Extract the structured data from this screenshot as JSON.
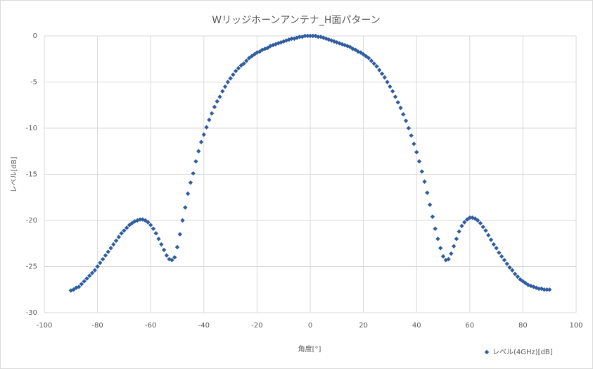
{
  "chart_data": {
    "type": "scatter",
    "title": "Wリッジホーンアンテナ_H面パターン",
    "x_label": "角度[°]",
    "y_label": "レベル[dB]",
    "xlim": [
      -100,
      100
    ],
    "xticks": [
      -100,
      -80,
      -60,
      -40,
      -20,
      0,
      20,
      40,
      60,
      80,
      100
    ],
    "ylim": [
      -30,
      0
    ],
    "yticks": [
      0,
      -5,
      -10,
      -15,
      -20,
      -25,
      -30
    ],
    "grid": true,
    "legend": "bottom-right",
    "series": [
      {
        "name": "レベル(4GHz)[dB]",
        "color": "#2e5c9e",
        "x": [
          -90,
          -89,
          -88,
          -87,
          -86,
          -85,
          -84,
          -83,
          -82,
          -81,
          -80,
          -79,
          -78,
          -77,
          -76,
          -75,
          -74,
          -73,
          -72,
          -71,
          -70,
          -69,
          -68,
          -67,
          -66,
          -65,
          -64,
          -63,
          -62,
          -61,
          -60,
          -59,
          -58,
          -57,
          -56,
          -55,
          -54,
          -53,
          -52,
          -51,
          -50,
          -49,
          -48,
          -47,
          -46,
          -45,
          -44,
          -43,
          -42,
          -41,
          -40,
          -39,
          -38,
          -37,
          -36,
          -35,
          -34,
          -33,
          -32,
          -31,
          -30,
          -29,
          -28,
          -27,
          -26,
          -25,
          -24,
          -23,
          -22,
          -21,
          -20,
          -19,
          -18,
          -17,
          -16,
          -15,
          -14,
          -13,
          -12,
          -11,
          -10,
          -9,
          -8,
          -7,
          -6,
          -5,
          -4,
          -3,
          -2,
          -1,
          0,
          1,
          2,
          3,
          4,
          5,
          6,
          7,
          8,
          9,
          10,
          11,
          12,
          13,
          14,
          15,
          16,
          17,
          18,
          19,
          20,
          21,
          22,
          23,
          24,
          25,
          26,
          27,
          28,
          29,
          30,
          31,
          32,
          33,
          34,
          35,
          36,
          37,
          38,
          39,
          40,
          41,
          42,
          43,
          44,
          45,
          46,
          47,
          48,
          49,
          50,
          51,
          52,
          53,
          54,
          55,
          56,
          57,
          58,
          59,
          60,
          61,
          62,
          63,
          64,
          65,
          66,
          67,
          68,
          69,
          70,
          71,
          72,
          73,
          74,
          75,
          76,
          77,
          78,
          79,
          80,
          81,
          82,
          83,
          84,
          85,
          86,
          87,
          88,
          89,
          90
        ],
        "values": [
          -27.6,
          -27.5,
          -27.3,
          -27.2,
          -26.9,
          -26.6,
          -26.3,
          -26.0,
          -25.7,
          -25.4,
          -25.0,
          -24.6,
          -24.2,
          -23.8,
          -23.4,
          -23.0,
          -22.6,
          -22.2,
          -21.8,
          -21.4,
          -21.1,
          -20.8,
          -20.5,
          -20.3,
          -20.1,
          -20.0,
          -19.9,
          -19.9,
          -20.0,
          -20.2,
          -20.5,
          -20.9,
          -21.4,
          -22.0,
          -22.6,
          -23.2,
          -23.8,
          -24.2,
          -24.3,
          -24.0,
          -22.9,
          -21.5,
          -20.0,
          -18.6,
          -17.1,
          -15.9,
          -14.9,
          -13.6,
          -12.5,
          -11.5,
          -10.7,
          -9.9,
          -9.1,
          -8.4,
          -7.7,
          -7.1,
          -6.6,
          -6.0,
          -5.5,
          -5.0,
          -4.6,
          -4.2,
          -3.8,
          -3.5,
          -3.2,
          -3.0,
          -2.7,
          -2.4,
          -2.2,
          -2.0,
          -1.8,
          -1.7,
          -1.5,
          -1.4,
          -1.3,
          -1.1,
          -1.0,
          -0.9,
          -0.8,
          -0.7,
          -0.6,
          -0.5,
          -0.4,
          -0.3,
          -0.3,
          -0.2,
          -0.1,
          -0.1,
          0,
          0,
          0,
          0,
          0,
          -0.1,
          -0.1,
          -0.2,
          -0.3,
          -0.4,
          -0.5,
          -0.6,
          -0.7,
          -0.8,
          -0.9,
          -1.0,
          -1.1,
          -1.2,
          -1.4,
          -1.5,
          -1.7,
          -1.8,
          -2.0,
          -2.2,
          -2.4,
          -2.7,
          -3.0,
          -3.3,
          -3.7,
          -4.1,
          -4.5,
          -5.0,
          -5.5,
          -6.0,
          -6.6,
          -7.2,
          -7.8,
          -8.5,
          -9.2,
          -10.0,
          -10.8,
          -11.7,
          -12.6,
          -13.6,
          -14.7,
          -15.8,
          -17.0,
          -18.3,
          -19.6,
          -20.9,
          -22.0,
          -23.0,
          -23.9,
          -24.3,
          -24.2,
          -23.6,
          -22.8,
          -22.0,
          -21.2,
          -20.6,
          -20.2,
          -19.9,
          -19.7,
          -19.7,
          -19.8,
          -20.0,
          -20.3,
          -20.7,
          -21.1,
          -21.6,
          -22.1,
          -22.6,
          -23.0,
          -23.5,
          -23.9,
          -24.3,
          -24.7,
          -25.1,
          -25.4,
          -25.8,
          -26.1,
          -26.4,
          -26.6,
          -26.8,
          -27.0,
          -27.1,
          -27.2,
          -27.3,
          -27.4,
          -27.4,
          -27.5,
          -27.5,
          -27.5
        ]
      }
    ]
  }
}
